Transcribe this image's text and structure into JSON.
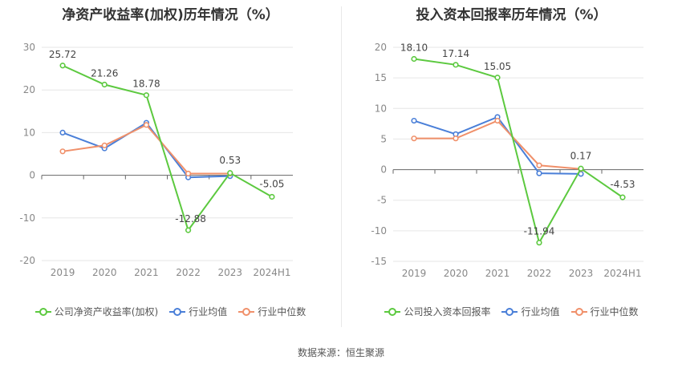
{
  "source_label": "数据来源：恒生聚源",
  "chart_data": [
    {
      "type": "line",
      "title": "净资产收益率(加权)历年情况（%）",
      "categories": [
        "2019",
        "2020",
        "2021",
        "2022",
        "2023",
        "2024H1"
      ],
      "ylim": [
        -20,
        30
      ],
      "yticks": [
        -20,
        -10,
        0,
        10,
        20,
        30
      ],
      "grid": true,
      "legend_position": "bottom",
      "series": [
        {
          "name": "公司净资产收益率(加权)",
          "color": "#5cc93f",
          "values": [
            25.72,
            21.26,
            18.78,
            -12.88,
            0.53,
            -5.05
          ],
          "labels": [
            "25.72",
            "21.26",
            "18.78",
            "-12.88",
            "0.53",
            "-5.05"
          ]
        },
        {
          "name": "行业均值",
          "color": "#4a7fd8",
          "values": [
            10.0,
            6.3,
            12.3,
            -0.5,
            -0.2,
            null
          ]
        },
        {
          "name": "行业中位数",
          "color": "#f0906a",
          "values": [
            5.6,
            7.0,
            11.8,
            0.4,
            0.4,
            null
          ]
        }
      ]
    },
    {
      "type": "line",
      "title": "投入资本回报率历年情况（%）",
      "categories": [
        "2019",
        "2020",
        "2021",
        "2022",
        "2023",
        "2024H1"
      ],
      "ylim": [
        -15,
        20
      ],
      "yticks": [
        -15,
        -10,
        -5,
        0,
        5,
        10,
        15,
        20
      ],
      "grid": true,
      "legend_position": "bottom",
      "series": [
        {
          "name": "公司投入资本回报率",
          "color": "#5cc93f",
          "values": [
            18.1,
            17.14,
            15.05,
            -11.94,
            0.17,
            -4.53
          ],
          "labels": [
            "18.10",
            "17.14",
            "15.05",
            "-11.94",
            "0.17",
            "-4.53"
          ]
        },
        {
          "name": "行业均值",
          "color": "#4a7fd8",
          "values": [
            8.0,
            5.8,
            8.6,
            -0.6,
            -0.7,
            null
          ]
        },
        {
          "name": "行业中位数",
          "color": "#f0906a",
          "values": [
            5.1,
            5.1,
            8.0,
            0.7,
            0.1,
            null
          ]
        }
      ]
    }
  ]
}
